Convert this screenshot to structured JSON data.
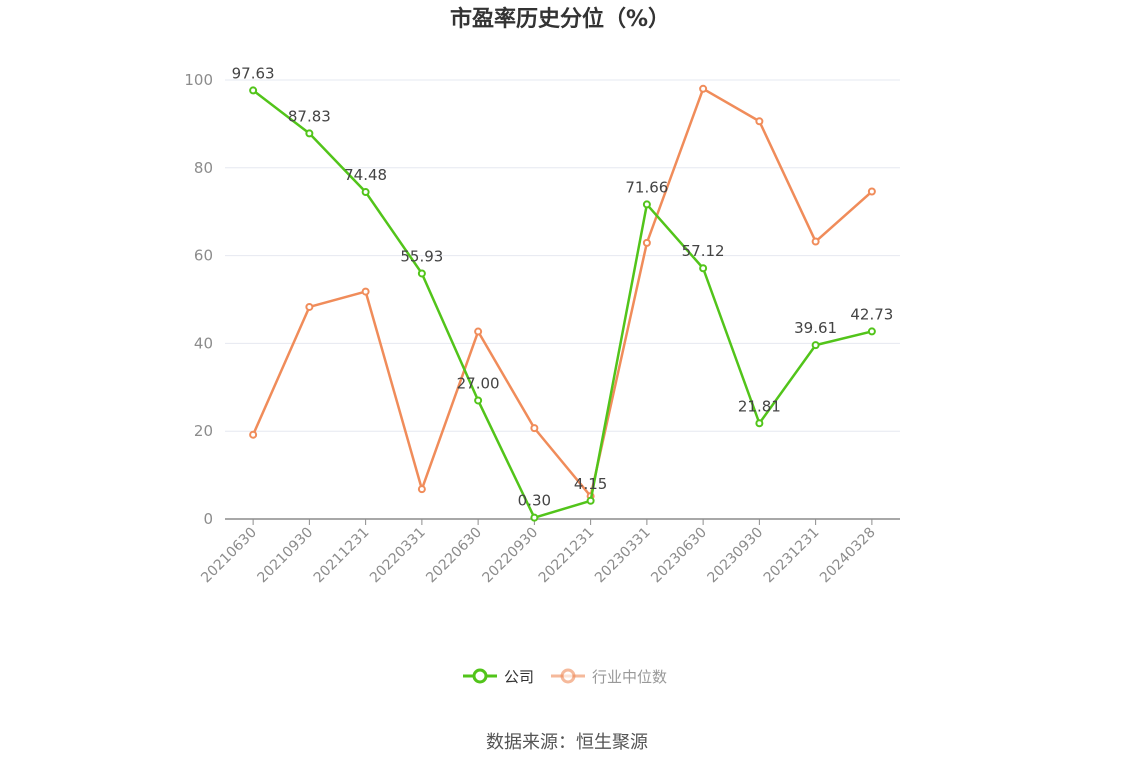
{
  "chart_data": {
    "type": "line",
    "title": "市盈率历史分位（%）",
    "categories": [
      "20210630",
      "20210930",
      "20211231",
      "20220331",
      "20220630",
      "20220930",
      "20221231",
      "20230331",
      "20230630",
      "20230930",
      "20231231",
      "20240328"
    ],
    "ylim": [
      0,
      100
    ],
    "yticks": [
      "0",
      "20",
      "40",
      "60",
      "80",
      "100"
    ],
    "grid": true,
    "legend_position": "bottom-center",
    "series": [
      {
        "name": "公司",
        "color": "#52c41a",
        "values": [
          97.63,
          87.83,
          74.48,
          55.93,
          27.0,
          0.3,
          4.15,
          71.66,
          57.12,
          21.81,
          39.61,
          42.73
        ],
        "labels": [
          "97.63",
          "87.83",
          "74.48",
          "55.93",
          "27.00",
          "0.30",
          "4.15",
          "71.66",
          "57.12",
          "21.81",
          "39.61",
          "42.73"
        ]
      },
      {
        "name": "行业中位数",
        "color": "#f08c5a",
        "values": [
          19.2,
          48.3,
          51.8,
          6.8,
          42.7,
          20.7,
          5.2,
          62.9,
          98.0,
          90.6,
          63.2,
          74.6
        ]
      }
    ]
  },
  "source": "数据来源：恒生聚源"
}
